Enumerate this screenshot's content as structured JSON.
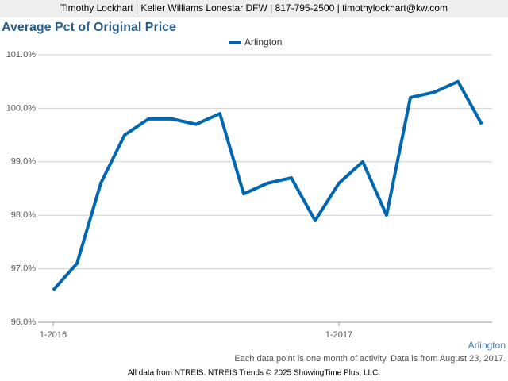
{
  "header": {
    "text": "Timothy Lockhart | Keller Williams Lonestar DFW | 817-795-2500 | timothylockhart@kw.com"
  },
  "chart_data": {
    "type": "line",
    "title": "Average Pct of Original Price",
    "categories": [
      "1-2016",
      null,
      null,
      null,
      null,
      null,
      null,
      null,
      null,
      null,
      null,
      null,
      "1-2017",
      null,
      null,
      null,
      null,
      null,
      null
    ],
    "series": [
      {
        "name": "Arlington",
        "color": "#0067b0",
        "values": [
          96.6,
          97.1,
          98.6,
          99.5,
          99.8,
          99.8,
          99.7,
          99.9,
          98.4,
          98.6,
          98.7,
          97.9,
          98.6,
          99.0,
          98.0,
          100.2,
          100.3,
          100.5,
          99.7
        ]
      }
    ],
    "ylim": [
      96,
      101
    ],
    "yticks": [
      {
        "value": 96,
        "label": "96.0%"
      },
      {
        "value": 97,
        "label": "97.0%"
      },
      {
        "value": 98,
        "label": "98.0%"
      },
      {
        "value": 99,
        "label": "99.0%"
      },
      {
        "value": 100,
        "label": "100.0%"
      },
      {
        "value": 101,
        "label": "101.0%"
      }
    ],
    "grid": true,
    "area_label": "Arlington",
    "note": "Each data point is one month of activity. Data is from August 23, 2017."
  },
  "footer": {
    "text": "All data from NTREIS. NTREIS Trends © 2025 ShowingTime Plus, LLC."
  }
}
